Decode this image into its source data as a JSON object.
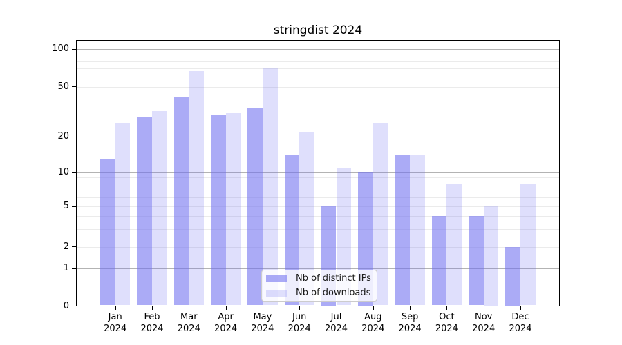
{
  "title": "stringdist 2024",
  "chart_data": {
    "type": "bar",
    "title": "stringdist 2024",
    "categories": [
      "Jan 2024",
      "Feb 2024",
      "Mar 2024",
      "Apr 2024",
      "May 2024",
      "Jun 2024",
      "Jul 2024",
      "Aug 2024",
      "Sep 2024",
      "Oct 2024",
      "Nov 2024",
      "Dec 2024"
    ],
    "series": [
      {
        "name": "Nb of distinct IPs",
        "values": [
          13,
          29,
          42,
          30,
          34,
          14,
          5,
          10,
          14,
          4,
          4,
          2
        ],
        "color": "#6e6ef0",
        "opacity": 0.58
      },
      {
        "name": "Nb of downloads",
        "values": [
          26,
          32,
          67,
          31,
          70,
          22,
          11,
          26,
          14,
          8,
          5,
          8
        ],
        "color": "#6e6ef0",
        "opacity": 0.22
      }
    ],
    "yscale": "log-like",
    "ylim": [
      0,
      115
    ],
    "yticks": [
      0,
      1,
      2,
      5,
      10,
      20,
      50,
      100
    ],
    "major_gridlines": [
      1,
      10,
      100
    ],
    "minor_gridlines": [
      2,
      3,
      4,
      5,
      6,
      7,
      8,
      9,
      20,
      30,
      40,
      50,
      60,
      70,
      80,
      90
    ],
    "grid": "on",
    "legend_position": "lower center",
    "xlabel": "",
    "ylabel": ""
  },
  "colors": {
    "bar_base": "#6e6ef0",
    "major_grid": "#b3b3b3",
    "minor_grid": "#ebebeb",
    "frame": "#000000",
    "legend_border": "#cccccc"
  }
}
